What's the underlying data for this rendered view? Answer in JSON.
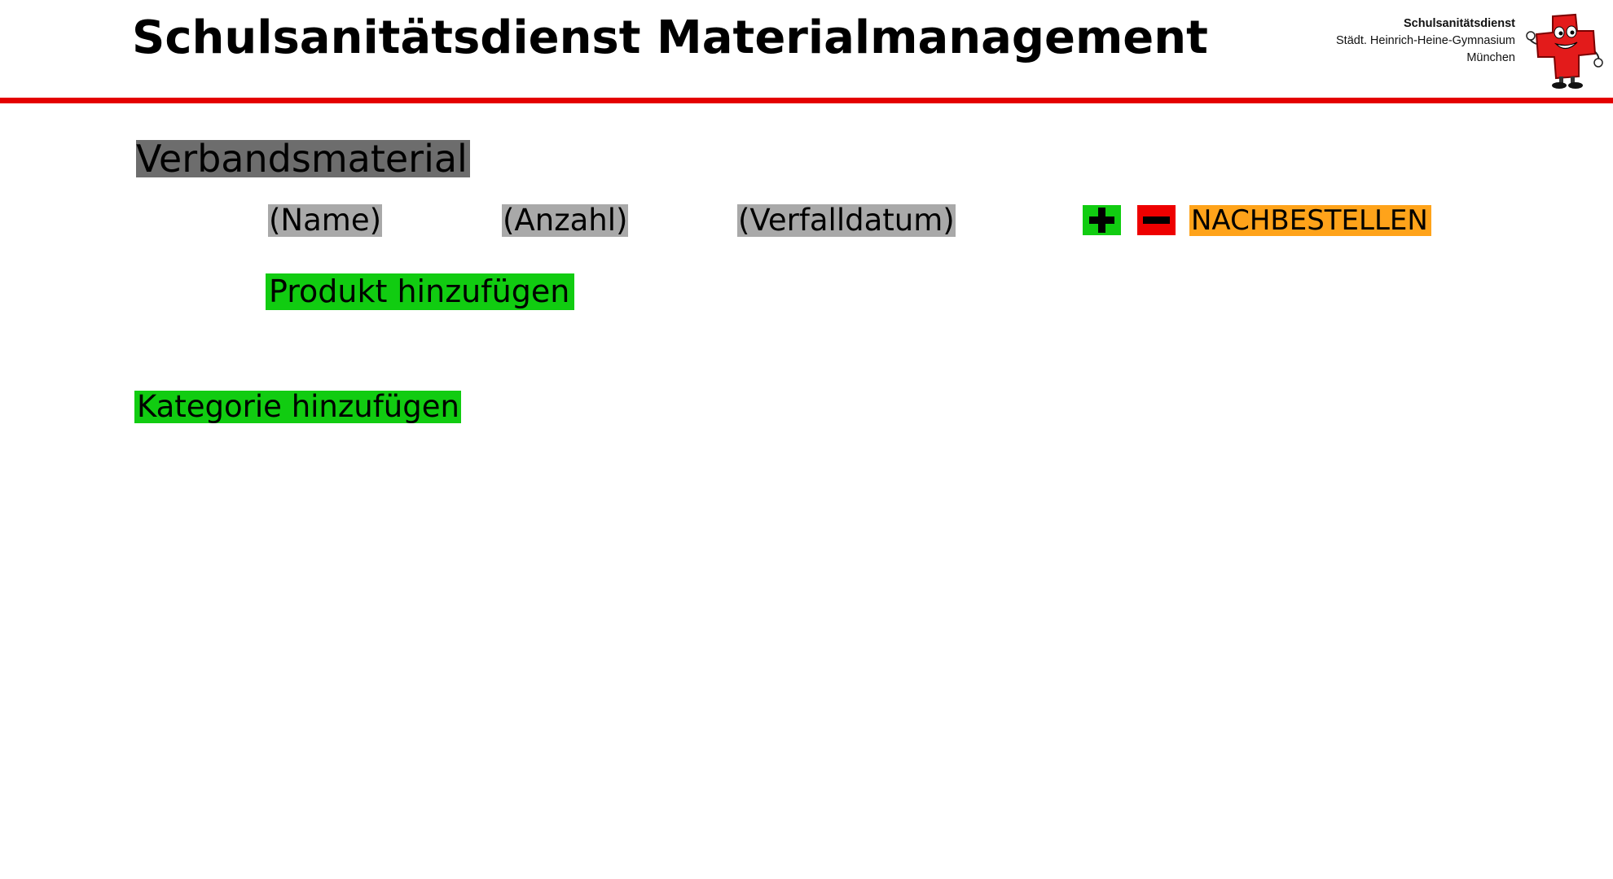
{
  "header": {
    "title": "Schulsanitätsdienst Materialmanagement",
    "school": {
      "line1": "Schulsanitätsdienst",
      "line2": "Städt. Heinrich-Heine-Gymnasium",
      "line3": "München"
    },
    "mascot_icon": "red-cross-mascot-icon"
  },
  "colors": {
    "accent_line": "#e40000",
    "category_bg": "#6d6d6d",
    "label_bg": "#a9a9a9",
    "add_button": "#11cc11",
    "remove_button": "#ee0000",
    "reorder_button": "#ffa31a"
  },
  "category": {
    "title": "Verbandsmaterial",
    "item": {
      "name_label": "(Name)",
      "count_label": "(Anzahl)",
      "expiry_label": "(Verfalldatum)",
      "increase_icon": "plus-icon",
      "decrease_icon": "minus-icon",
      "reorder_label": "NACHBESTELLEN"
    },
    "add_product_label": "Produkt hinzufügen"
  },
  "add_category_label": "Kategorie hinzufügen"
}
